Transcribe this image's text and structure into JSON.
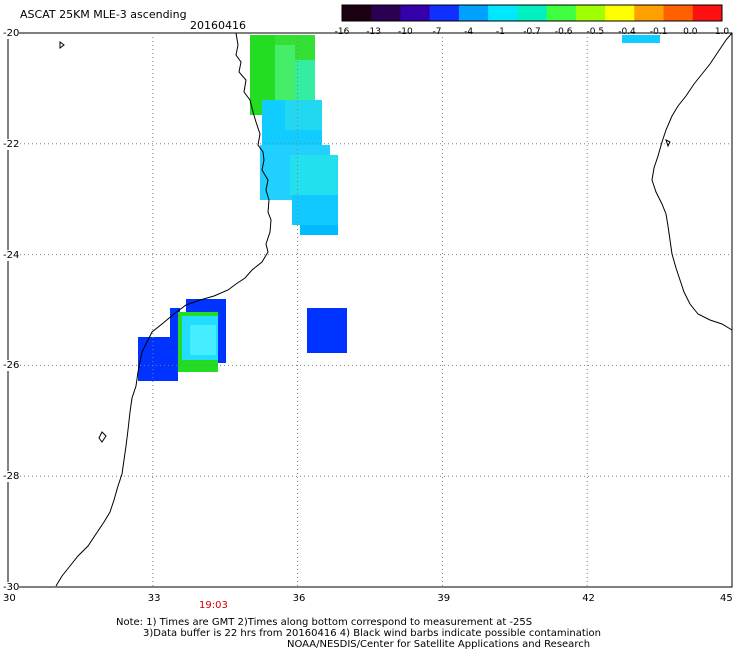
{
  "header": {
    "title": "ASCAT 25KM MLE-3 ascending",
    "date": "20160416"
  },
  "colorbar": {
    "labels": [
      "-16",
      "-13",
      "-10",
      "-7",
      "-4",
      "-1",
      "-0.7",
      "-0.6",
      "-0.5",
      "-0.4",
      "-0.1",
      "0.0",
      "1.0"
    ],
    "colors": [
      "#1a0010",
      "#2a0050",
      "#3300aa",
      "#1030ff",
      "#00a0ff",
      "#00e8ff",
      "#00f0c0",
      "#40ff40",
      "#a0ff00",
      "#ffff00",
      "#ffa000",
      "#ff6000",
      "#ff1010"
    ]
  },
  "map": {
    "lat_labels": [
      "-20",
      "-22",
      "-24",
      "-26",
      "-28",
      "-30"
    ],
    "lon_labels": [
      "30",
      "33",
      "36",
      "39",
      "42",
      "45"
    ],
    "time_label": "19:03"
  },
  "notes": {
    "line1": "Note: 1) Times are GMT 2)Times along bottom correspond to measurement at -25S",
    "line2": "3)Data buffer is 22 hrs from 20160416 4) Black wind barbs indicate possible contamination",
    "line3": "NOAA/NESDIS/Center for Satellite Applications and Research"
  },
  "colors": {
    "green": "#22dd22",
    "light_green": "#55ee55",
    "cyan": "#00ccff",
    "light_cyan": "#22ddff",
    "blue": "#0033ff",
    "coast": "#000000",
    "grid": "#808080"
  }
}
